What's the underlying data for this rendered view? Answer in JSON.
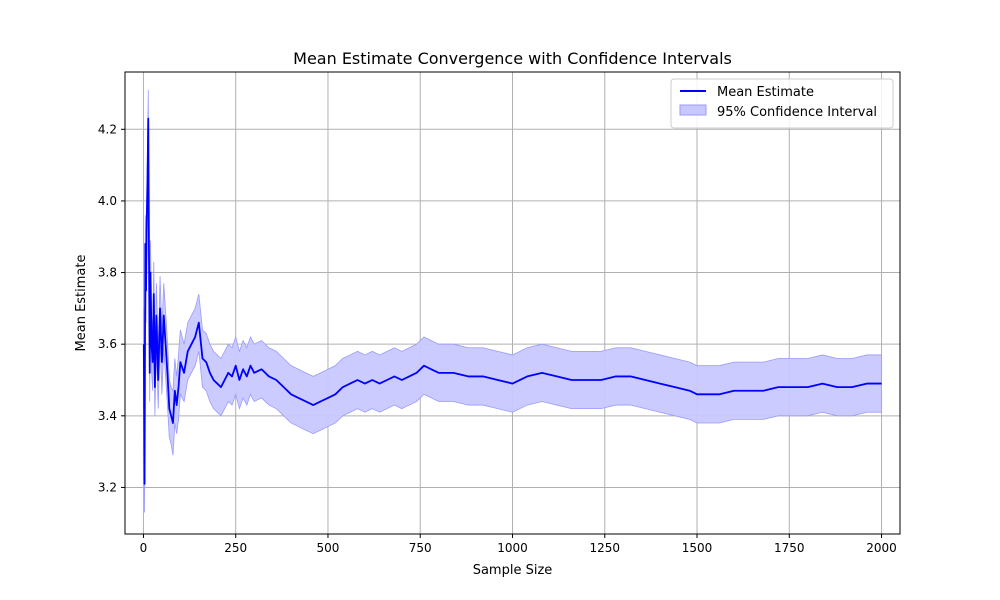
{
  "chart_data": {
    "type": "line",
    "title": "Mean Estimate Convergence with Confidence Intervals",
    "xlabel": "Sample Size",
    "ylabel": "Mean Estimate",
    "xlim": [
      -50,
      2050
    ],
    "ylim": [
      3.07,
      4.36
    ],
    "xticks": [
      0,
      250,
      500,
      750,
      1000,
      1250,
      1500,
      1750,
      2000
    ],
    "yticks": [
      3.2,
      3.4,
      3.6,
      3.8,
      4.0,
      4.2
    ],
    "xtick_labels": [
      "0",
      "250",
      "500",
      "750",
      "1000",
      "1250",
      "1500",
      "1750",
      "2000"
    ],
    "ytick_labels": [
      "3.2",
      "3.4",
      "3.6",
      "3.8",
      "4.0",
      "4.2"
    ],
    "grid": true,
    "legend_position": "top-right",
    "colors": {
      "mean": "#0000ff",
      "ci_fill": "#c8c8ff",
      "ci_edge": "#9a9aff",
      "grid": "#b0b0b0"
    },
    "series": [
      {
        "name": "Mean Estimate",
        "kind": "line",
        "x": [
          1,
          3,
          5,
          7,
          9,
          11,
          13,
          15,
          17,
          19,
          22,
          25,
          28,
          31,
          35,
          40,
          45,
          50,
          55,
          60,
          65,
          70,
          75,
          80,
          85,
          90,
          95,
          100,
          110,
          120,
          130,
          140,
          150,
          160,
          170,
          180,
          190,
          200,
          210,
          220,
          230,
          240,
          250,
          260,
          270,
          280,
          290,
          300,
          320,
          340,
          360,
          380,
          400,
          420,
          440,
          460,
          480,
          500,
          520,
          540,
          560,
          580,
          600,
          620,
          640,
          660,
          680,
          700,
          720,
          740,
          760,
          780,
          800,
          840,
          880,
          920,
          960,
          1000,
          1040,
          1080,
          1120,
          1160,
          1200,
          1240,
          1280,
          1320,
          1360,
          1400,
          1440,
          1480,
          1500,
          1520,
          1560,
          1600,
          1640,
          1680,
          1720,
          1760,
          1800,
          1840,
          1880,
          1920,
          1960,
          2000
        ],
        "y": [
          3.6,
          3.21,
          3.88,
          3.75,
          3.95,
          4.05,
          4.23,
          3.85,
          3.52,
          3.8,
          3.6,
          3.55,
          3.74,
          3.48,
          3.68,
          3.5,
          3.7,
          3.55,
          3.68,
          3.6,
          3.52,
          3.42,
          3.4,
          3.38,
          3.47,
          3.43,
          3.48,
          3.55,
          3.52,
          3.58,
          3.6,
          3.62,
          3.66,
          3.56,
          3.55,
          3.52,
          3.5,
          3.49,
          3.48,
          3.5,
          3.52,
          3.51,
          3.54,
          3.5,
          3.53,
          3.51,
          3.54,
          3.52,
          3.53,
          3.51,
          3.5,
          3.48,
          3.46,
          3.45,
          3.44,
          3.43,
          3.44,
          3.45,
          3.46,
          3.48,
          3.49,
          3.5,
          3.49,
          3.5,
          3.49,
          3.5,
          3.51,
          3.5,
          3.51,
          3.52,
          3.54,
          3.53,
          3.52,
          3.52,
          3.51,
          3.51,
          3.5,
          3.49,
          3.51,
          3.52,
          3.51,
          3.5,
          3.5,
          3.5,
          3.51,
          3.51,
          3.5,
          3.49,
          3.48,
          3.47,
          3.46,
          3.46,
          3.46,
          3.47,
          3.47,
          3.47,
          3.48,
          3.48,
          3.48,
          3.49,
          3.48,
          3.48,
          3.49,
          3.49
        ]
      },
      {
        "name": "95% Confidence Interval",
        "kind": "band",
        "x": [
          1,
          3,
          5,
          7,
          9,
          11,
          13,
          15,
          17,
          19,
          22,
          25,
          28,
          31,
          35,
          40,
          45,
          50,
          55,
          60,
          65,
          70,
          75,
          80,
          85,
          90,
          95,
          100,
          110,
          120,
          130,
          140,
          150,
          160,
          170,
          180,
          190,
          200,
          210,
          220,
          230,
          240,
          250,
          260,
          270,
          280,
          290,
          300,
          320,
          340,
          360,
          380,
          400,
          420,
          440,
          460,
          480,
          500,
          520,
          540,
          560,
          580,
          600,
          620,
          640,
          660,
          680,
          700,
          720,
          740,
          760,
          780,
          800,
          840,
          880,
          920,
          960,
          1000,
          1040,
          1080,
          1120,
          1160,
          1200,
          1240,
          1280,
          1320,
          1360,
          1400,
          1440,
          1480,
          1500,
          1520,
          1560,
          1600,
          1640,
          1680,
          1720,
          1760,
          1800,
          1840,
          1880,
          1920,
          1960,
          2000
        ],
        "lower": [
          3.56,
          3.13,
          3.8,
          3.66,
          3.86,
          3.96,
          4.15,
          3.76,
          3.44,
          3.71,
          3.52,
          3.47,
          3.65,
          3.4,
          3.59,
          3.42,
          3.61,
          3.46,
          3.59,
          3.51,
          3.43,
          3.34,
          3.32,
          3.29,
          3.38,
          3.35,
          3.39,
          3.46,
          3.44,
          3.5,
          3.52,
          3.54,
          3.58,
          3.48,
          3.47,
          3.44,
          3.42,
          3.41,
          3.4,
          3.42,
          3.44,
          3.43,
          3.46,
          3.42,
          3.45,
          3.43,
          3.46,
          3.44,
          3.45,
          3.43,
          3.42,
          3.4,
          3.38,
          3.37,
          3.36,
          3.35,
          3.36,
          3.37,
          3.38,
          3.4,
          3.41,
          3.42,
          3.41,
          3.42,
          3.41,
          3.42,
          3.43,
          3.42,
          3.43,
          3.44,
          3.46,
          3.45,
          3.44,
          3.44,
          3.43,
          3.43,
          3.42,
          3.41,
          3.43,
          3.44,
          3.43,
          3.42,
          3.42,
          3.42,
          3.43,
          3.43,
          3.42,
          3.41,
          3.4,
          3.39,
          3.38,
          3.38,
          3.38,
          3.39,
          3.39,
          3.39,
          3.4,
          3.4,
          3.4,
          3.41,
          3.4,
          3.4,
          3.41,
          3.41
        ],
        "upper": [
          3.7,
          3.29,
          3.96,
          3.84,
          4.04,
          4.14,
          4.31,
          3.94,
          3.6,
          3.89,
          3.68,
          3.63,
          3.83,
          3.56,
          3.77,
          3.58,
          3.79,
          3.64,
          3.77,
          3.69,
          3.61,
          3.5,
          3.48,
          3.47,
          3.56,
          3.51,
          3.57,
          3.64,
          3.6,
          3.66,
          3.68,
          3.7,
          3.74,
          3.64,
          3.63,
          3.6,
          3.58,
          3.57,
          3.56,
          3.58,
          3.6,
          3.59,
          3.62,
          3.58,
          3.61,
          3.59,
          3.62,
          3.6,
          3.61,
          3.59,
          3.58,
          3.56,
          3.54,
          3.53,
          3.52,
          3.51,
          3.52,
          3.53,
          3.54,
          3.56,
          3.57,
          3.58,
          3.57,
          3.58,
          3.57,
          3.58,
          3.59,
          3.58,
          3.59,
          3.6,
          3.62,
          3.61,
          3.6,
          3.6,
          3.59,
          3.59,
          3.58,
          3.57,
          3.59,
          3.6,
          3.59,
          3.58,
          3.58,
          3.58,
          3.59,
          3.59,
          3.58,
          3.57,
          3.56,
          3.55,
          3.54,
          3.54,
          3.54,
          3.55,
          3.55,
          3.55,
          3.56,
          3.56,
          3.56,
          3.57,
          3.56,
          3.56,
          3.57,
          3.57
        ]
      }
    ]
  }
}
